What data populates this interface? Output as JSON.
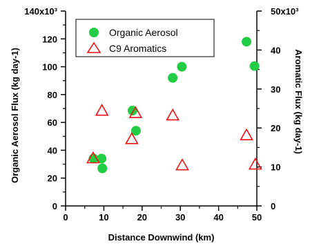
{
  "chart_data": {
    "type": "scatter",
    "xlabel": "Distance Downwind (km)",
    "ylabel_left": "Organic Aerosol Flux (kg day-1)",
    "ylabel_right": "Aromatic Flux (kg day-1)",
    "xlim": [
      0,
      50
    ],
    "ylim_left": [
      0,
      140
    ],
    "ylim_right": [
      0,
      50
    ],
    "x_ticks": [
      "0",
      "10",
      "20",
      "30",
      "40",
      "50"
    ],
    "y_left_ticks": [
      "0",
      "20",
      "40",
      "60",
      "80",
      "100",
      "120",
      "140x10³"
    ],
    "y_right_ticks": [
      "0",
      "10",
      "20",
      "30",
      "40",
      "50x10³"
    ],
    "legend_position": "top-left",
    "series": [
      {
        "name": "Organic Aerosol",
        "axis": "left",
        "marker": "filled-circle",
        "color": "#22cc44",
        "points": [
          {
            "x": 7.3,
            "y": 34
          },
          {
            "x": 9.4,
            "y": 34
          },
          {
            "x": 9.6,
            "y": 27
          },
          {
            "x": 17.5,
            "y": 68.5
          },
          {
            "x": 18.4,
            "y": 54
          },
          {
            "x": 28.0,
            "y": 92
          },
          {
            "x": 30.4,
            "y": 100
          },
          {
            "x": 47.3,
            "y": 118
          },
          {
            "x": 49.4,
            "y": 100.5
          }
        ]
      },
      {
        "name": "C9 Aromatics",
        "axis": "right",
        "marker": "open-triangle",
        "color": "#ee1111",
        "points": [
          {
            "x": 7.2,
            "y": 12.2
          },
          {
            "x": 9.5,
            "y": 24.4
          },
          {
            "x": 17.3,
            "y": 17.1
          },
          {
            "x": 18.3,
            "y": 23.8
          },
          {
            "x": 28.0,
            "y": 23.2
          },
          {
            "x": 30.5,
            "y": 10.4
          },
          {
            "x": 47.3,
            "y": 18.1
          },
          {
            "x": 49.6,
            "y": 10.6
          }
        ]
      }
    ],
    "legend": [
      {
        "label": "Organic Aerosol",
        "marker": "filled-circle"
      },
      {
        "label": "C9 Aromatics",
        "marker": "open-triangle"
      }
    ]
  }
}
